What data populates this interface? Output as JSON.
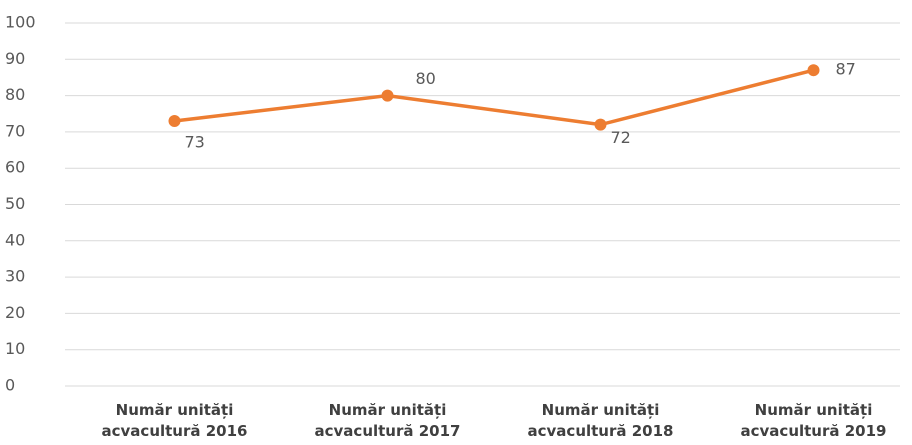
{
  "chart_data": {
    "type": "line",
    "categories": [
      "Număr unități acvacultură 2016",
      "Număr unități acvacultură 2017",
      "Număr unități acvacultură 2018",
      "Număr unități acvacultură 2019"
    ],
    "series": [
      {
        "name": "Număr unități acvacultură",
        "color": "#ed7d31",
        "values": [
          73,
          80,
          72,
          87
        ]
      }
    ],
    "ylim": [
      0,
      100
    ],
    "yticks": [
      0,
      10,
      20,
      30,
      40,
      50,
      60,
      70,
      80,
      90,
      100
    ],
    "grid": true
  }
}
